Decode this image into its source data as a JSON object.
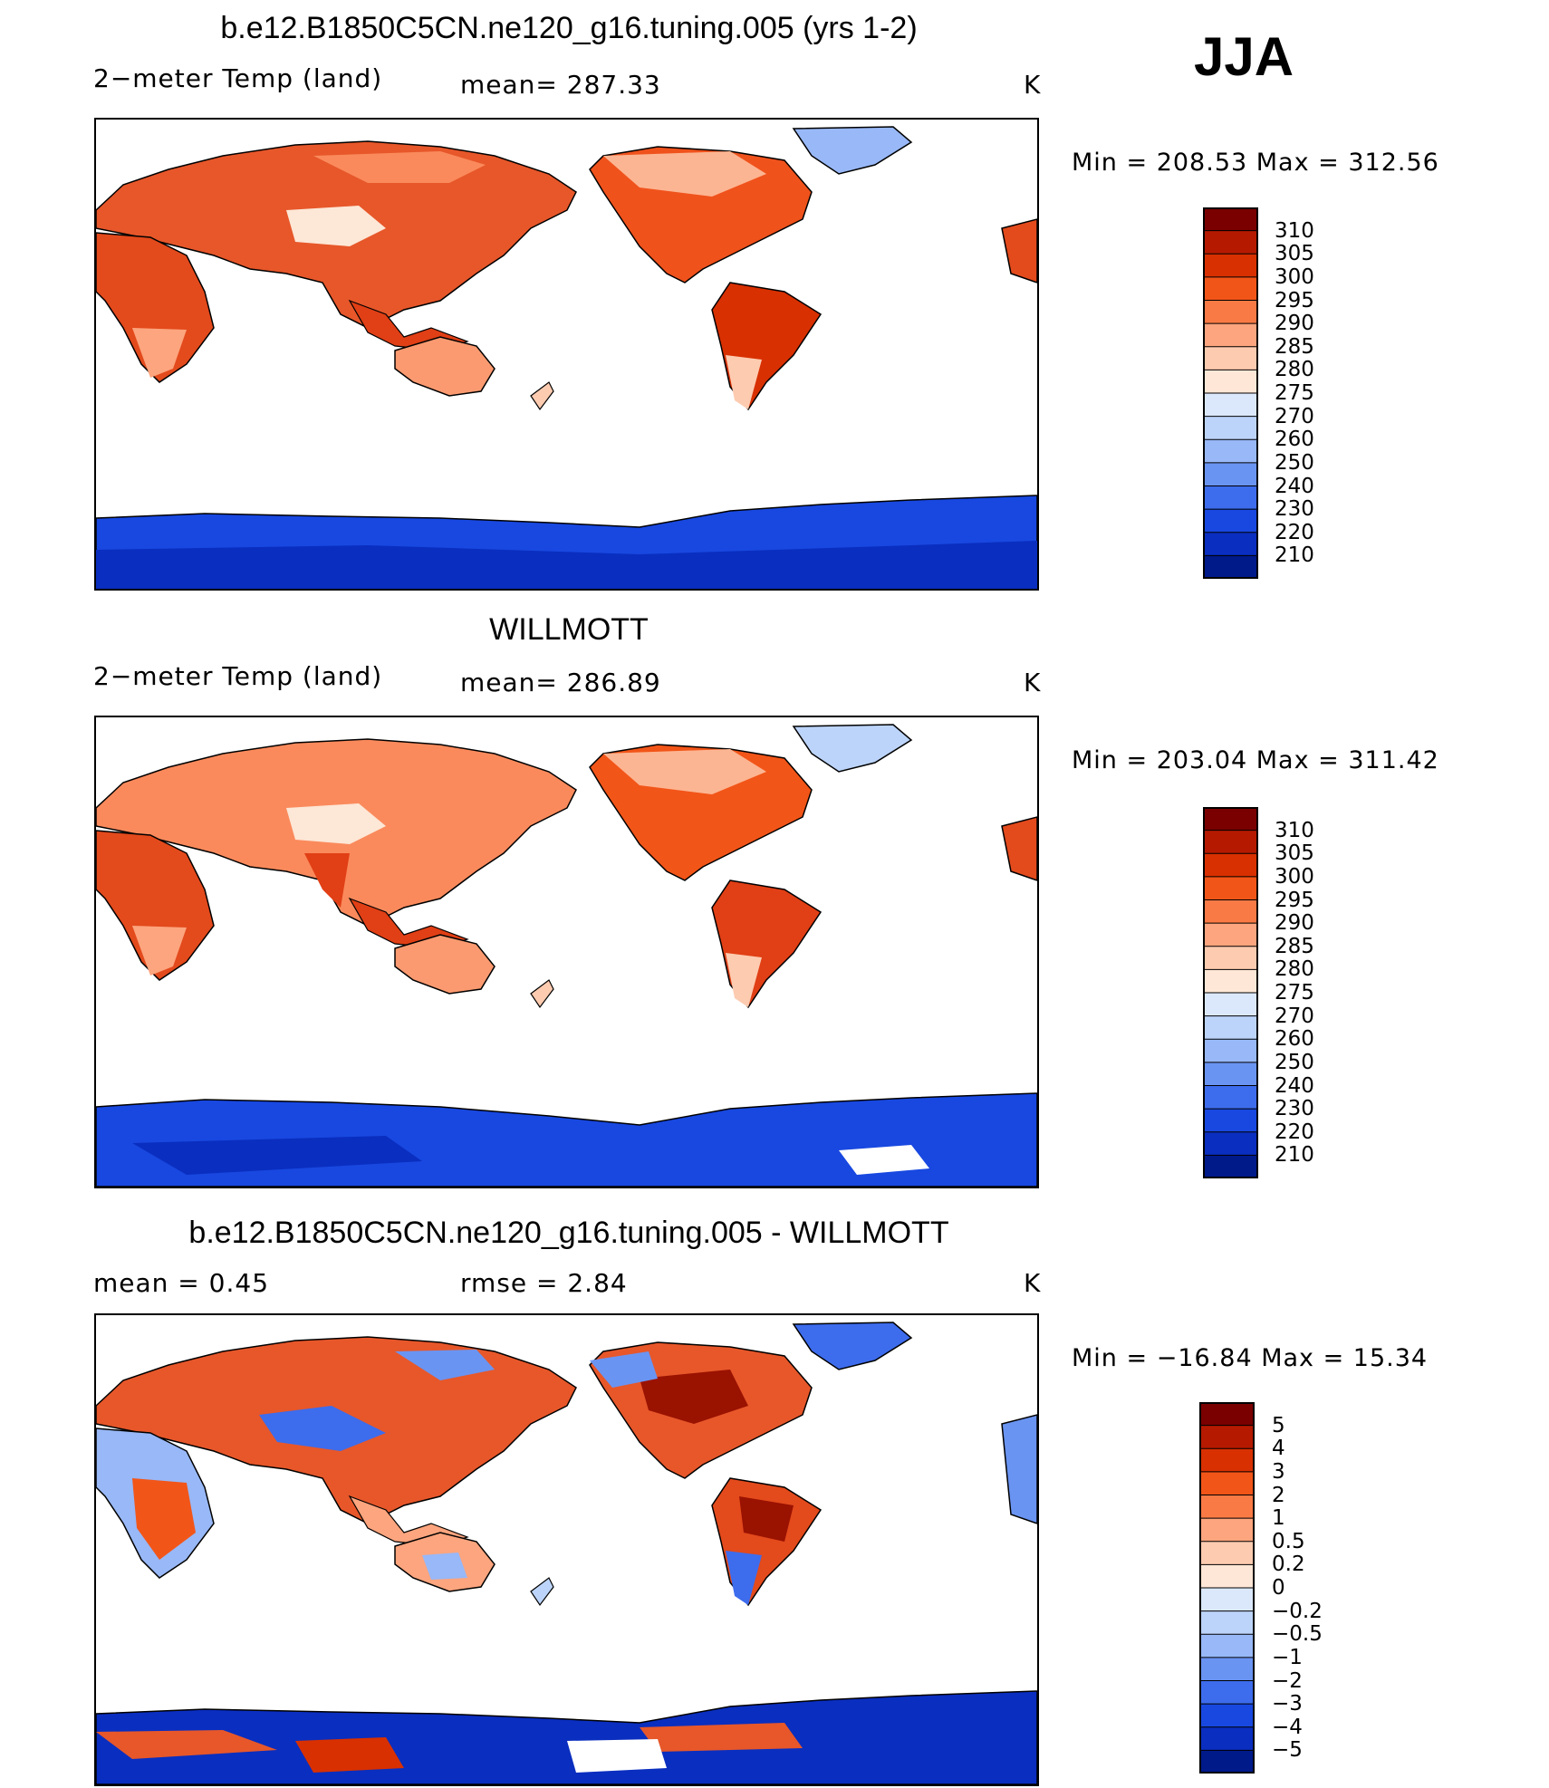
{
  "season": "JJA",
  "panels": [
    {
      "title": "b.e12.B1850C5CN.ne120_g16.tuning.005 (yrs 1-2)",
      "left_text": "2−meter Temp  (land)",
      "center_text": "mean=  287.33",
      "units": "K",
      "minmax": "Min  =  208.53  Max  =  312.56"
    },
    {
      "title": "WILLMOTT",
      "left_text": "2−meter Temp  (land)",
      "center_text": "mean=  286.89",
      "units": "K",
      "minmax": "Min  =  203.04  Max  =  311.42"
    },
    {
      "title": "b.e12.B1850C5CN.ne120_g16.tuning.005 - WILLMOTT",
      "left_text": "mean  =      0.45",
      "center_text": "rmse  =      2.84",
      "units": "K",
      "minmax": "Min  =  −16.84  Max  =    15.34"
    }
  ],
  "chart_data": [
    {
      "type": "heatmap",
      "title": "b.e12.B1850C5CN.ne120_g16.tuning.005 (yrs 1-2)",
      "variable": "2−meter Temp  (land)",
      "units": "K",
      "mean": 287.33,
      "min": 208.53,
      "max": 312.56,
      "colorbar_levels": [
        "310",
        "305",
        "300",
        "295",
        "290",
        "285",
        "280",
        "275",
        "270",
        "260",
        "250",
        "240",
        "230",
        "220",
        "210"
      ],
      "colorbar_colors": [
        "#7a0000",
        "#b51a00",
        "#d83000",
        "#f25518",
        "#fa7a45",
        "#fca57e",
        "#fdcbb0",
        "#fee7d6",
        "#dbe8fb",
        "#bcd4f9",
        "#98b8f7",
        "#6a94f2",
        "#3d6ced",
        "#1848e0",
        "#0a2ebf",
        "#001a8a"
      ]
    },
    {
      "type": "heatmap",
      "title": "WILLMOTT",
      "variable": "2−meter Temp  (land)",
      "units": "K",
      "mean": 286.89,
      "min": 203.04,
      "max": 311.42,
      "colorbar_levels": [
        "310",
        "305",
        "300",
        "295",
        "290",
        "285",
        "280",
        "275",
        "270",
        "260",
        "250",
        "240",
        "230",
        "220",
        "210"
      ],
      "colorbar_colors": [
        "#7a0000",
        "#b51a00",
        "#d83000",
        "#f25518",
        "#fa7a45",
        "#fca57e",
        "#fdcbb0",
        "#fee7d6",
        "#dbe8fb",
        "#bcd4f9",
        "#98b8f7",
        "#6a94f2",
        "#3d6ced",
        "#1848e0",
        "#0a2ebf",
        "#001a8a"
      ]
    },
    {
      "type": "heatmap",
      "title": "b.e12.B1850C5CN.ne120_g16.tuning.005 - WILLMOTT",
      "units": "K",
      "mean": 0.45,
      "rmse": 2.84,
      "min": -16.84,
      "max": 15.34,
      "colorbar_levels": [
        "5",
        "4",
        "3",
        "2",
        "1",
        "0.5",
        "0.2",
        "0",
        "−0.2",
        "−0.5",
        "−1",
        "−2",
        "−3",
        "−4",
        "−5"
      ],
      "colorbar_colors": [
        "#7a0000",
        "#b51a00",
        "#d83000",
        "#f25518",
        "#fa7a45",
        "#fca57e",
        "#fdcbb0",
        "#fee7d6",
        "#dbe8fb",
        "#bcd4f9",
        "#98b8f7",
        "#6a94f2",
        "#3d6ced",
        "#1848e0",
        "#0a2ebf",
        "#001a8a"
      ]
    }
  ]
}
